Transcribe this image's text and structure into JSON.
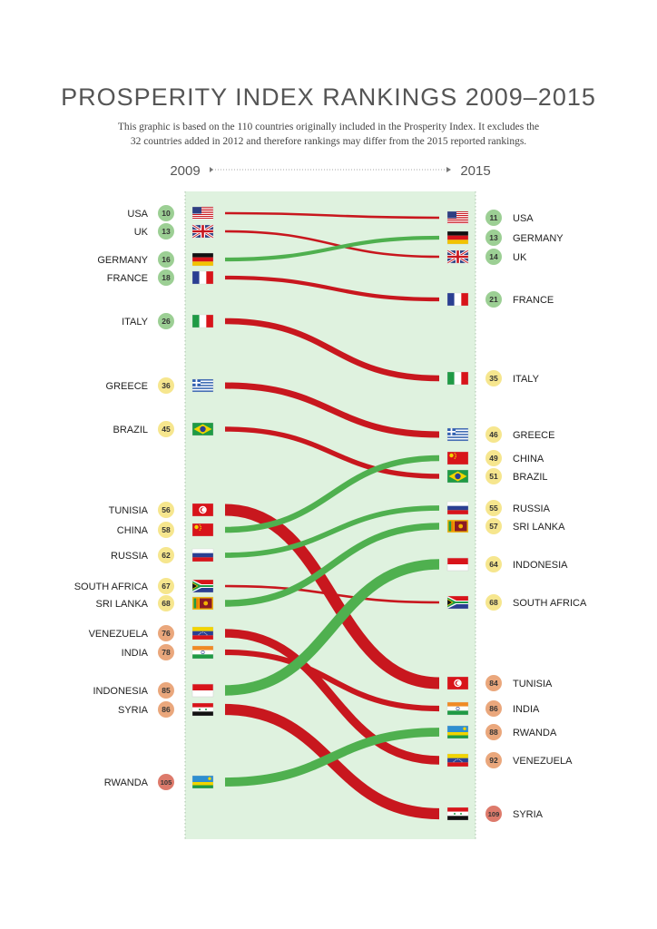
{
  "title": "PROSPERITY INDEX RANKINGS 2009–2015",
  "subtitle_line1": "This graphic is based on the 110 countries originally included in the Prosperity Index. It excludes the",
  "subtitle_line2": "32 countries added in 2012 and therefore rankings may differ from the 2015 reported rankings.",
  "colors": {
    "improved": "#4fb04f",
    "declined": "#c8171e",
    "panel": "#dff2df",
    "badge_green": "#9ccf94",
    "badge_yellow": "#f6e68e",
    "badge_orange": "#eaa77c",
    "badge_red": "#dd7a6b"
  },
  "chart_data": {
    "type": "slope",
    "x_start_label": "2009",
    "x_end_label": "2015",
    "series": [
      {
        "name": "USA",
        "rank_2009": 10,
        "rank_2015": 11,
        "flag": "usa"
      },
      {
        "name": "UK",
        "rank_2009": 13,
        "rank_2015": 14,
        "flag": "uk"
      },
      {
        "name": "GERMANY",
        "rank_2009": 16,
        "rank_2015": 13,
        "flag": "germany"
      },
      {
        "name": "FRANCE",
        "rank_2009": 18,
        "rank_2015": 21,
        "flag": "france"
      },
      {
        "name": "ITALY",
        "rank_2009": 26,
        "rank_2015": 35,
        "flag": "italy"
      },
      {
        "name": "GREECE",
        "rank_2009": 36,
        "rank_2015": 46,
        "flag": "greece"
      },
      {
        "name": "BRAZIL",
        "rank_2009": 45,
        "rank_2015": 51,
        "flag": "brazil"
      },
      {
        "name": "TUNISIA",
        "rank_2009": 56,
        "rank_2015": 84,
        "flag": "tunisia"
      },
      {
        "name": "CHINA",
        "rank_2009": 58,
        "rank_2015": 49,
        "flag": "china"
      },
      {
        "name": "RUSSIA",
        "rank_2009": 62,
        "rank_2015": 55,
        "flag": "russia"
      },
      {
        "name": "SOUTH AFRICA",
        "rank_2009": 67,
        "rank_2015": 68,
        "flag": "south-africa"
      },
      {
        "name": "SRI LANKA",
        "rank_2009": 68,
        "rank_2015": 57,
        "flag": "sri-lanka"
      },
      {
        "name": "VENEZUELA",
        "rank_2009": 76,
        "rank_2015": 92,
        "flag": "venezuela"
      },
      {
        "name": "INDIA",
        "rank_2009": 78,
        "rank_2015": 86,
        "flag": "india"
      },
      {
        "name": "INDONESIA",
        "rank_2009": 85,
        "rank_2015": 64,
        "flag": "indonesia"
      },
      {
        "name": "SYRIA",
        "rank_2009": 86,
        "rank_2015": 109,
        "flag": "syria"
      },
      {
        "name": "RWANDA",
        "rank_2009": 105,
        "rank_2015": 88,
        "flag": "rwanda"
      }
    ]
  }
}
